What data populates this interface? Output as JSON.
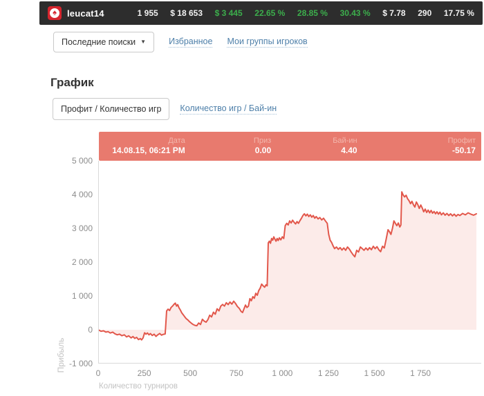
{
  "topbar": {
    "username": "leucat14",
    "logo": "pokerstars-spade",
    "stats": [
      {
        "text": "1 955",
        "color": "white"
      },
      {
        "text": "$ 18 653",
        "color": "white"
      },
      {
        "text": "$ 3 445",
        "color": "green"
      },
      {
        "text": "22.65 %",
        "color": "green"
      },
      {
        "text": "28.85 %",
        "color": "green"
      },
      {
        "text": "30.43 %",
        "color": "green"
      },
      {
        "text": "$ 7.78",
        "color": "white"
      },
      {
        "text": "290",
        "color": "white"
      },
      {
        "text": "17.75 %",
        "color": "white"
      }
    ]
  },
  "toolbar": {
    "dropdown_label": "Последние поиски",
    "favorites_link": "Избранное",
    "groups_link": "Мои группы игроков"
  },
  "section_title": "График",
  "tabs": [
    {
      "label": "Профит / Количество игр",
      "selected": true
    },
    {
      "label": "Количество игр / Бай-ин",
      "selected": false
    }
  ],
  "tooltip": {
    "columns": [
      {
        "label": "Дата",
        "value": "14.08.15, 06:21 PM"
      },
      {
        "label": "Приз",
        "value": "0.00"
      },
      {
        "label": "Бай-ин",
        "value": "4.40"
      },
      {
        "label": "Профит",
        "value": "-50.17"
      }
    ]
  },
  "colors": {
    "topbar_bg": "#2d2d2d",
    "stat_green": "#3cae4c",
    "logo_red": "#d6252e",
    "link_blue": "#4d7fa9",
    "tooltip_bg": "#e87a6e",
    "line": "#e2574b",
    "fill": "#fcebe9",
    "axis": "#d9d9d9"
  },
  "chart_data": {
    "type": "area",
    "title": "",
    "xlabel": "Количество турниров",
    "ylabel": "Прибыль",
    "xlim": [
      0,
      2080
    ],
    "ylim": [
      -1000,
      5000
    ],
    "grid": false,
    "legend": "none",
    "x_ticks": [
      {
        "v": 0,
        "label": "0"
      },
      {
        "v": 250,
        "label": "250"
      },
      {
        "v": 500,
        "label": "500"
      },
      {
        "v": 750,
        "label": "750"
      },
      {
        "v": 1000,
        "label": "1 000"
      },
      {
        "v": 1250,
        "label": "1 250"
      },
      {
        "v": 1500,
        "label": "1 500"
      },
      {
        "v": 1750,
        "label": "1 750"
      }
    ],
    "y_ticks": [
      {
        "v": 5000,
        "label": "5 000"
      },
      {
        "v": 4000,
        "label": "4 000"
      },
      {
        "v": 3000,
        "label": "3 000"
      },
      {
        "v": 2000,
        "label": "2 000"
      },
      {
        "v": 1000,
        "label": "1 000"
      },
      {
        "v": 0,
        "label": "0"
      },
      {
        "v": -1000,
        "label": "-1 000"
      }
    ],
    "series_name": "Профит",
    "points": [
      [
        0,
        -10
      ],
      [
        12,
        -45
      ],
      [
        25,
        -30
      ],
      [
        38,
        -70
      ],
      [
        50,
        -55
      ],
      [
        62,
        -95
      ],
      [
        75,
        -70
      ],
      [
        88,
        -120
      ],
      [
        100,
        -150
      ],
      [
        112,
        -130
      ],
      [
        125,
        -175
      ],
      [
        138,
        -150
      ],
      [
        150,
        -210
      ],
      [
        162,
        -180
      ],
      [
        175,
        -240
      ],
      [
        185,
        -200
      ],
      [
        195,
        -255
      ],
      [
        205,
        -225
      ],
      [
        215,
        -290
      ],
      [
        225,
        -260
      ],
      [
        232,
        -300
      ],
      [
        240,
        -240
      ],
      [
        248,
        -90
      ],
      [
        256,
        -130
      ],
      [
        264,
        -95
      ],
      [
        272,
        -150
      ],
      [
        280,
        -115
      ],
      [
        290,
        -170
      ],
      [
        300,
        -130
      ],
      [
        310,
        -195
      ],
      [
        320,
        -150
      ],
      [
        330,
        -110
      ],
      [
        340,
        -160
      ],
      [
        350,
        -135
      ],
      [
        360,
        -125
      ],
      [
        368,
        560
      ],
      [
        376,
        610
      ],
      [
        384,
        570
      ],
      [
        392,
        660
      ],
      [
        400,
        700
      ],
      [
        408,
        755
      ],
      [
        415,
        790
      ],
      [
        422,
        700
      ],
      [
        428,
        745
      ],
      [
        435,
        650
      ],
      [
        442,
        590
      ],
      [
        450,
        500
      ],
      [
        458,
        445
      ],
      [
        466,
        385
      ],
      [
        474,
        330
      ],
      [
        482,
        295
      ],
      [
        492,
        240
      ],
      [
        502,
        195
      ],
      [
        512,
        155
      ],
      [
        522,
        130
      ],
      [
        532,
        120
      ],
      [
        542,
        200
      ],
      [
        552,
        155
      ],
      [
        562,
        310
      ],
      [
        572,
        255
      ],
      [
        582,
        225
      ],
      [
        592,
        300
      ],
      [
        602,
        430
      ],
      [
        612,
        380
      ],
      [
        622,
        520
      ],
      [
        632,
        460
      ],
      [
        642,
        620
      ],
      [
        652,
        560
      ],
      [
        662,
        700
      ],
      [
        672,
        750
      ],
      [
        682,
        700
      ],
      [
        692,
        800
      ],
      [
        702,
        745
      ],
      [
        712,
        820
      ],
      [
        722,
        760
      ],
      [
        732,
        845
      ],
      [
        742,
        780
      ],
      [
        752,
        690
      ],
      [
        762,
        635
      ],
      [
        772,
        545
      ],
      [
        780,
        510
      ],
      [
        788,
        620
      ],
      [
        796,
        730
      ],
      [
        804,
        660
      ],
      [
        812,
        700
      ],
      [
        820,
        920
      ],
      [
        828,
        860
      ],
      [
        836,
        980
      ],
      [
        844,
        930
      ],
      [
        852,
        1080
      ],
      [
        860,
        1020
      ],
      [
        868,
        1160
      ],
      [
        876,
        1230
      ],
      [
        884,
        1350
      ],
      [
        892,
        1300
      ],
      [
        900,
        1260
      ],
      [
        908,
        1330
      ],
      [
        914,
        1300
      ],
      [
        920,
        2570
      ],
      [
        926,
        2620
      ],
      [
        932,
        2560
      ],
      [
        938,
        2700
      ],
      [
        944,
        2650
      ],
      [
        950,
        2750
      ],
      [
        956,
        2680
      ],
      [
        962,
        2620
      ],
      [
        968,
        2700
      ],
      [
        974,
        2640
      ],
      [
        980,
        2720
      ],
      [
        988,
        2660
      ],
      [
        996,
        2750
      ],
      [
        1004,
        2700
      ],
      [
        1012,
        3080
      ],
      [
        1020,
        3150
      ],
      [
        1028,
        3100
      ],
      [
        1036,
        3220
      ],
      [
        1044,
        3160
      ],
      [
        1052,
        3240
      ],
      [
        1060,
        3180
      ],
      [
        1068,
        3130
      ],
      [
        1076,
        3200
      ],
      [
        1084,
        3150
      ],
      [
        1092,
        3230
      ],
      [
        1100,
        3300
      ],
      [
        1108,
        3380
      ],
      [
        1116,
        3430
      ],
      [
        1124,
        3370
      ],
      [
        1132,
        3420
      ],
      [
        1140,
        3350
      ],
      [
        1148,
        3400
      ],
      [
        1156,
        3330
      ],
      [
        1164,
        3380
      ],
      [
        1172,
        3300
      ],
      [
        1180,
        3350
      ],
      [
        1190,
        3280
      ],
      [
        1200,
        3320
      ],
      [
        1210,
        3250
      ],
      [
        1220,
        3300
      ],
      [
        1230,
        3220
      ],
      [
        1240,
        3150
      ],
      [
        1248,
        2820
      ],
      [
        1256,
        2650
      ],
      [
        1264,
        2580
      ],
      [
        1272,
        2480
      ],
      [
        1280,
        2400
      ],
      [
        1290,
        2450
      ],
      [
        1300,
        2380
      ],
      [
        1310,
        2430
      ],
      [
        1320,
        2360
      ],
      [
        1330,
        2420
      ],
      [
        1340,
        2350
      ],
      [
        1350,
        2450
      ],
      [
        1360,
        2390
      ],
      [
        1370,
        2300
      ],
      [
        1380,
        2220
      ],
      [
        1390,
        2160
      ],
      [
        1400,
        2350
      ],
      [
        1410,
        2300
      ],
      [
        1420,
        2450
      ],
      [
        1430,
        2400
      ],
      [
        1440,
        2350
      ],
      [
        1450,
        2420
      ],
      [
        1460,
        2360
      ],
      [
        1470,
        2430
      ],
      [
        1480,
        2370
      ],
      [
        1490,
        2470
      ],
      [
        1500,
        2400
      ],
      [
        1510,
        2460
      ],
      [
        1520,
        2370
      ],
      [
        1530,
        2310
      ],
      [
        1540,
        2470
      ],
      [
        1550,
        2420
      ],
      [
        1560,
        2680
      ],
      [
        1570,
        2960
      ],
      [
        1578,
        2900
      ],
      [
        1586,
        2820
      ],
      [
        1594,
        3000
      ],
      [
        1602,
        3220
      ],
      [
        1610,
        3150
      ],
      [
        1618,
        3080
      ],
      [
        1626,
        3160
      ],
      [
        1634,
        3040
      ],
      [
        1640,
        3100
      ],
      [
        1645,
        4080
      ],
      [
        1652,
        3990
      ],
      [
        1660,
        3930
      ],
      [
        1668,
        3980
      ],
      [
        1676,
        3880
      ],
      [
        1684,
        3820
      ],
      [
        1692,
        3730
      ],
      [
        1700,
        3800
      ],
      [
        1708,
        3700
      ],
      [
        1716,
        3630
      ],
      [
        1724,
        3780
      ],
      [
        1732,
        3700
      ],
      [
        1740,
        3590
      ],
      [
        1748,
        3690
      ],
      [
        1756,
        3600
      ],
      [
        1764,
        3490
      ],
      [
        1772,
        3570
      ],
      [
        1780,
        3470
      ],
      [
        1788,
        3540
      ],
      [
        1796,
        3460
      ],
      [
        1804,
        3530
      ],
      [
        1812,
        3450
      ],
      [
        1820,
        3500
      ],
      [
        1828,
        3430
      ],
      [
        1836,
        3490
      ],
      [
        1844,
        3420
      ],
      [
        1852,
        3480
      ],
      [
        1860,
        3400
      ],
      [
        1870,
        3460
      ],
      [
        1880,
        3390
      ],
      [
        1890,
        3440
      ],
      [
        1900,
        3380
      ],
      [
        1910,
        3430
      ],
      [
        1920,
        3370
      ],
      [
        1930,
        3420
      ],
      [
        1940,
        3360
      ],
      [
        1950,
        3410
      ],
      [
        1960,
        3380
      ],
      [
        1975,
        3440
      ],
      [
        1990,
        3400
      ],
      [
        2005,
        3460
      ],
      [
        2020,
        3420
      ],
      [
        2035,
        3390
      ],
      [
        2050,
        3430
      ]
    ]
  }
}
